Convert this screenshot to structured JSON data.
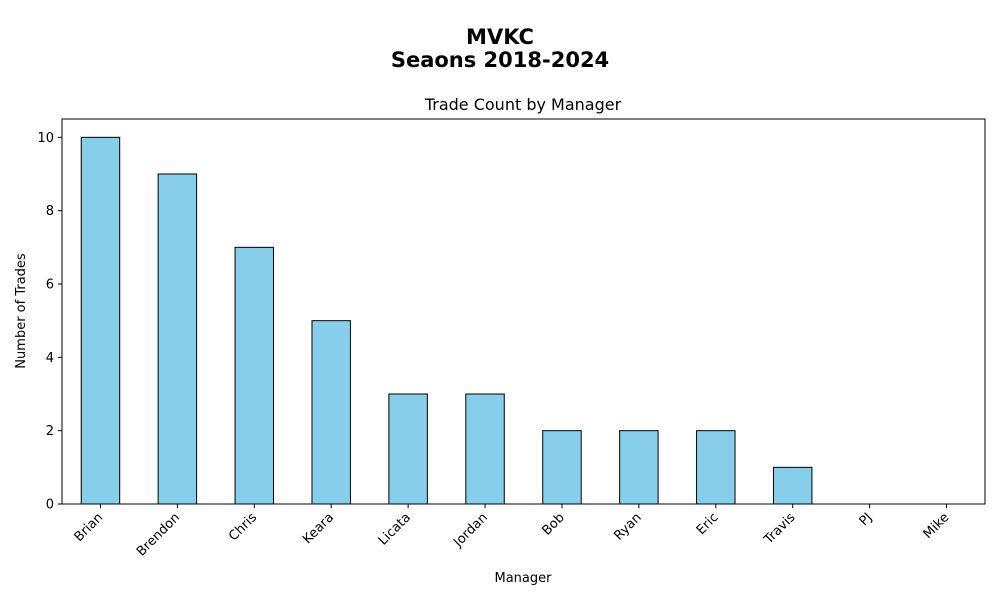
{
  "figure": {
    "suptitle_line1": "MVKC",
    "suptitle_line2": "Seaons 2018-2024"
  },
  "chart_data": {
    "type": "bar",
    "title": "Trade Count by Manager",
    "xlabel": "Manager",
    "ylabel": "Number of Trades",
    "categories": [
      "Brian",
      "Brendon",
      "Chris",
      "Keara",
      "Licata",
      "Jordan",
      "Bob",
      "Ryan",
      "Eric",
      "Travis",
      "PJ",
      "Mike"
    ],
    "values": [
      10,
      9,
      7,
      5,
      3,
      3,
      2,
      2,
      2,
      1,
      0,
      0
    ],
    "ylim": [
      0,
      10.5
    ],
    "yticks": [
      0,
      2,
      4,
      6,
      8,
      10
    ],
    "bar_color": "#87CEEB",
    "edge_color": "#000000",
    "grid": false,
    "legend": "none"
  }
}
